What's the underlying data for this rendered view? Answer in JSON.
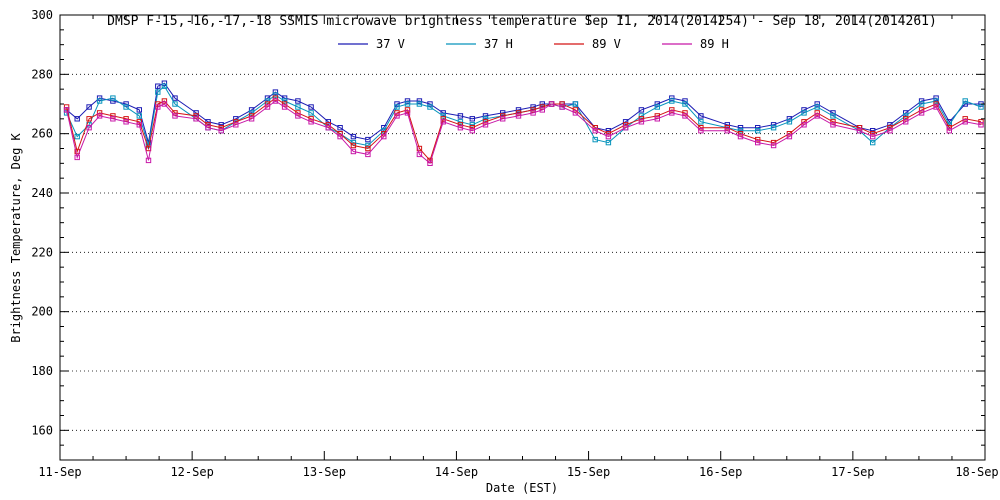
{
  "page": {
    "background_color": "#FFFFFF",
    "text_color": "#000000"
  },
  "chart_data": {
    "type": "line",
    "title": "DMSP F-15,-16,-17,-18 SSMIS microwave brightness temperature Sep 11, 2014(2014254) - Sep 18, 2014(2014261)",
    "xlabel": "Date (EST)",
    "ylabel": "Brightness Temperature, Deg K",
    "ylim": [
      150,
      300
    ],
    "xlim": [
      0,
      7
    ],
    "y_ticks": [
      160,
      180,
      200,
      220,
      240,
      260,
      280,
      300
    ],
    "x_ticks": [
      0,
      1,
      2,
      3,
      4,
      5,
      6,
      7
    ],
    "x_tick_labels": [
      "11-Sep",
      "12-Sep",
      "13-Sep",
      "14-Sep",
      "15-Sep",
      "16-Sep",
      "17-Sep",
      "18-Sep"
    ],
    "grid": "horizontal-dotted",
    "legend_position": "top-center",
    "marker": "open-square",
    "x_days": [
      0.05,
      0.13,
      0.22,
      0.3,
      0.4,
      0.5,
      0.6,
      0.67,
      0.74,
      0.79,
      0.87,
      1.03,
      1.12,
      1.22,
      1.33,
      1.45,
      1.57,
      1.63,
      1.7,
      1.8,
      1.9,
      2.03,
      2.12,
      2.22,
      2.33,
      2.45,
      2.55,
      2.63,
      2.72,
      2.8,
      2.9,
      3.03,
      3.12,
      3.22,
      3.35,
      3.47,
      3.58,
      3.65,
      3.72,
      3.8,
      3.9,
      4.05,
      4.15,
      4.28,
      4.4,
      4.52,
      4.63,
      4.73,
      4.85,
      5.05,
      5.15,
      5.28,
      5.4,
      5.52,
      5.63,
      5.73,
      5.85,
      6.05,
      6.15,
      6.28,
      6.4,
      6.52,
      6.63,
      6.73,
      6.85,
      6.97
    ],
    "series": [
      {
        "name": "37 V",
        "color": "#1C1CB4",
        "values": [
          268,
          265,
          269,
          272,
          271,
          270,
          268,
          257,
          276,
          277,
          272,
          267,
          264,
          263,
          265,
          268,
          272,
          274,
          272,
          271,
          269,
          264,
          262,
          259,
          258,
          262,
          270,
          271,
          271,
          270,
          267,
          266,
          265,
          266,
          267,
          268,
          269,
          270,
          270,
          270,
          270,
          262,
          261,
          264,
          268,
          270,
          272,
          271,
          266,
          263,
          262,
          262,
          263,
          265,
          268,
          270,
          267,
          262,
          261,
          263,
          267,
          271,
          272,
          264,
          270,
          270
        ]
      },
      {
        "name": "37 H",
        "color": "#0894BC",
        "values": [
          267,
          259,
          263,
          271,
          272,
          269,
          266,
          256,
          274,
          276,
          270,
          265,
          262,
          261,
          264,
          267,
          271,
          273,
          271,
          269,
          267,
          262,
          260,
          257,
          256,
          261,
          269,
          270,
          270,
          269,
          266,
          264,
          263,
          265,
          266,
          267,
          268,
          269,
          270,
          269,
          270,
          258,
          257,
          262,
          266,
          269,
          271,
          270,
          264,
          262,
          261,
          261,
          262,
          264,
          267,
          269,
          266,
          261,
          257,
          262,
          266,
          270,
          271,
          263,
          271,
          269
        ]
      },
      {
        "name": "89 V",
        "color": "#D41414",
        "values": [
          269,
          254,
          265,
          267,
          266,
          265,
          264,
          255,
          270,
          271,
          267,
          266,
          263,
          262,
          264,
          266,
          270,
          272,
          270,
          267,
          265,
          263,
          260,
          256,
          255,
          260,
          267,
          268,
          255,
          251,
          265,
          263,
          262,
          264,
          266,
          267,
          268,
          269,
          270,
          270,
          268,
          262,
          260,
          263,
          265,
          266,
          268,
          267,
          262,
          262,
          260,
          258,
          257,
          260,
          264,
          267,
          264,
          262,
          260,
          262,
          265,
          268,
          270,
          262,
          265,
          264
        ]
      },
      {
        "name": "89 H",
        "color": "#C818A8",
        "values": [
          268,
          252,
          262,
          266,
          265,
          264,
          263,
          251,
          269,
          270,
          266,
          265,
          262,
          261,
          263,
          265,
          269,
          271,
          269,
          266,
          264,
          262,
          259,
          254,
          253,
          259,
          266,
          267,
          253,
          250,
          264,
          262,
          261,
          263,
          265,
          266,
          267,
          268,
          270,
          269,
          267,
          261,
          259,
          262,
          264,
          265,
          267,
          266,
          261,
          261,
          259,
          257,
          256,
          259,
          263,
          266,
          263,
          261,
          259,
          261,
          264,
          267,
          269,
          261,
          264,
          263
        ]
      }
    ]
  }
}
